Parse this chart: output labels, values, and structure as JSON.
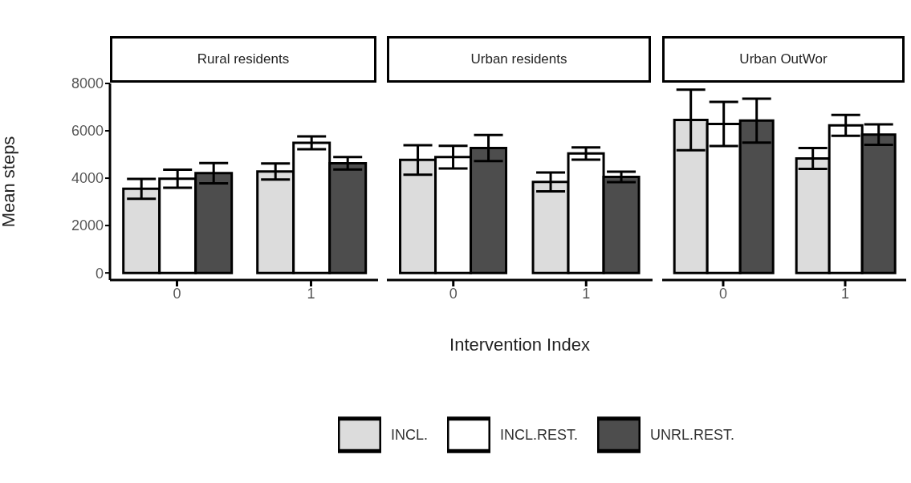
{
  "chart_data": [
    {
      "type": "bar",
      "title": "Rural residents",
      "ylabel": "Mean steps",
      "categories": [
        "0",
        "1"
      ],
      "ylim": [
        -300,
        8000
      ],
      "yticks": [
        0,
        2000,
        4000,
        6000,
        8000
      ],
      "series": [
        {
          "color": "#dcdcdc",
          "values": [
            3550,
            4280
          ],
          "errors": [
            420,
            340
          ]
        },
        {
          "color": "#ffffff",
          "values": [
            3980,
            5490
          ],
          "errors": [
            380,
            270
          ]
        },
        {
          "color": "#4d4d4d",
          "values": [
            4210,
            4630
          ],
          "errors": [
            430,
            260
          ]
        }
      ]
    },
    {
      "type": "bar",
      "title": "Urban residents",
      "xlabel": "Intervention Index",
      "categories": [
        "0",
        "1"
      ],
      "ylim": [
        -300,
        8000
      ],
      "tick_labels": "x",
      "legend": "bottom",
      "series": [
        {
          "name": "INCL.",
          "color": "#dcdcdc",
          "values": [
            4770,
            3840
          ],
          "errors": [
            620,
            400
          ]
        },
        {
          "name": "INCL.REST.",
          "color": "#ffffff",
          "values": [
            4890,
            5040
          ],
          "errors": [
            480,
            260
          ]
        },
        {
          "name": "UNRL.REST.",
          "color": "#4d4d4d",
          "values": [
            5270,
            4050
          ],
          "errors": [
            550,
            220
          ]
        }
      ]
    },
    {
      "type": "bar",
      "title": "Urban OutWor",
      "categories": [
        "0",
        "1"
      ],
      "ylim": [
        -300,
        8000
      ],
      "tick_labels": "x",
      "series": [
        {
          "color": "#dcdcdc",
          "values": [
            6460,
            4830
          ],
          "errors": [
            1280,
            440
          ]
        },
        {
          "color": "#ffffff",
          "values": [
            6290,
            6230
          ],
          "errors": [
            930,
            440
          ]
        },
        {
          "color": "#4d4d4d",
          "values": [
            6430,
            5840
          ],
          "errors": [
            930,
            430
          ]
        }
      ]
    }
  ]
}
